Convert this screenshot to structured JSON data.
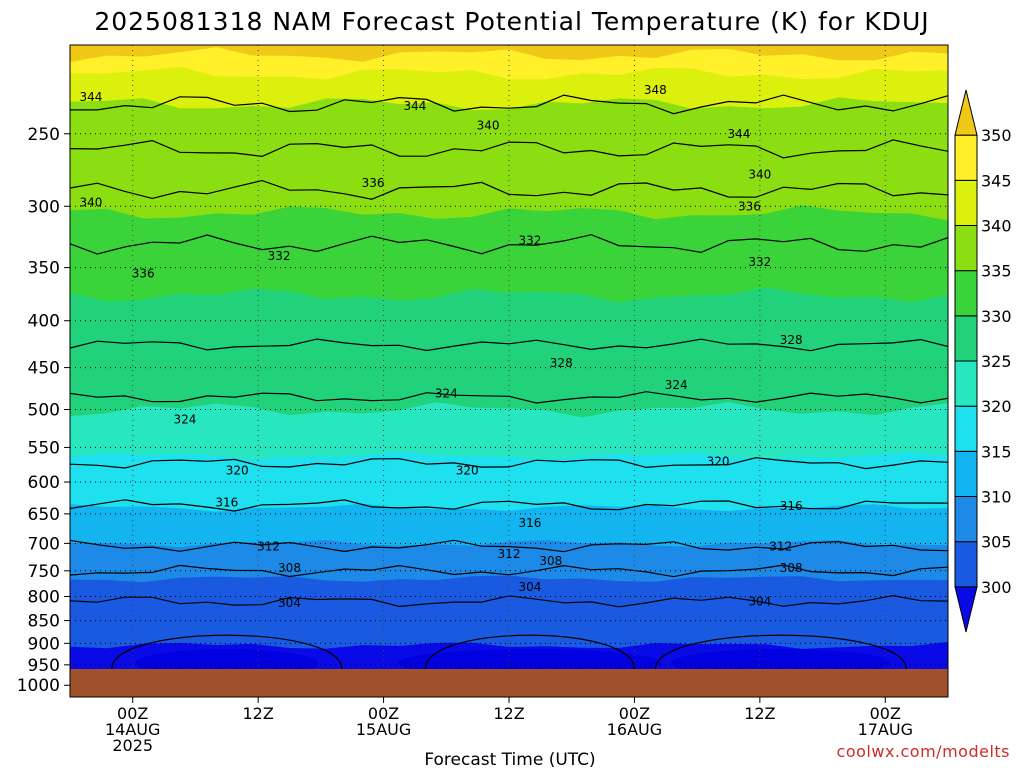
{
  "chart_data": {
    "type": "contour",
    "title": "2025081318 NAM Forecast Potential Temperature (K) for KDUJ",
    "xlabel": "Forecast Time (UTC)",
    "ylabel": "",
    "credit": "coolwx.com/modelts",
    "x_ticks": [
      {
        "hour": 6,
        "lines": [
          "00Z",
          "14AUG",
          "2025"
        ]
      },
      {
        "hour": 18,
        "lines": [
          "12Z"
        ]
      },
      {
        "hour": 30,
        "lines": [
          "00Z",
          "15AUG"
        ]
      },
      {
        "hour": 42,
        "lines": [
          "12Z"
        ]
      },
      {
        "hour": 54,
        "lines": [
          "00Z",
          "16AUG"
        ]
      },
      {
        "hour": 66,
        "lines": [
          "12Z"
        ]
      },
      {
        "hour": 78,
        "lines": [
          "00Z",
          "17AUG"
        ]
      }
    ],
    "x_range_hours": [
      0,
      84
    ],
    "y_ticks_hpa": [
      250,
      300,
      350,
      400,
      450,
      500,
      550,
      600,
      650,
      700,
      750,
      800,
      850,
      900,
      950,
      1000
    ],
    "y_range_hpa": [
      200,
      1030
    ],
    "y_scale": "log-pressure",
    "grid": "dotted",
    "ground_level_hpa": 960,
    "colorbar": {
      "levels": [
        300,
        305,
        310,
        315,
        320,
        325,
        330,
        335,
        340,
        345,
        350
      ],
      "colors": [
        "#0a0ae6",
        "#1a5ae0",
        "#1e8ae8",
        "#14b4f0",
        "#1ee0ee",
        "#28e6c0",
        "#22d27a",
        "#3ad43a",
        "#8ade12",
        "#dcf00e",
        "#fff02a",
        "#f0c818"
      ],
      "extend": "both",
      "placement": "right"
    },
    "ground_color": "#a0522d",
    "contour_lines": [
      {
        "value": 344,
        "pressure": 232
      },
      {
        "value": 340,
        "pressure": 260
      },
      {
        "value": 336,
        "pressure": 288
      },
      {
        "value": 332,
        "pressure": 330
      },
      {
        "value": 328,
        "pressure": 425
      },
      {
        "value": 324,
        "pressure": 485
      },
      {
        "value": 320,
        "pressure": 572
      },
      {
        "value": 316,
        "pressure": 636
      },
      {
        "value": 312,
        "pressure": 705
      },
      {
        "value": 308,
        "pressure": 750
      },
      {
        "value": 304,
        "pressure": 810
      }
    ],
    "contour_labels": [
      {
        "text": "344",
        "hour": 2,
        "pressure": 228
      },
      {
        "text": "344",
        "hour": 33,
        "pressure": 233
      },
      {
        "text": "348",
        "hour": 56,
        "pressure": 224
      },
      {
        "text": "340",
        "hour": 40,
        "pressure": 245
      },
      {
        "text": "344",
        "hour": 64,
        "pressure": 250
      },
      {
        "text": "340",
        "hour": 66,
        "pressure": 277
      },
      {
        "text": "340",
        "hour": 2,
        "pressure": 297
      },
      {
        "text": "336",
        "hour": 29,
        "pressure": 283
      },
      {
        "text": "336",
        "hour": 65,
        "pressure": 300
      },
      {
        "text": "336",
        "hour": 7,
        "pressure": 355
      },
      {
        "text": "332",
        "hour": 20,
        "pressure": 340
      },
      {
        "text": "332",
        "hour": 44,
        "pressure": 327
      },
      {
        "text": "332",
        "hour": 66,
        "pressure": 345
      },
      {
        "text": "328",
        "hour": 47,
        "pressure": 445
      },
      {
        "text": "328",
        "hour": 69,
        "pressure": 420
      },
      {
        "text": "324",
        "hour": 36,
        "pressure": 480
      },
      {
        "text": "324",
        "hour": 58,
        "pressure": 470
      },
      {
        "text": "324",
        "hour": 11,
        "pressure": 513
      },
      {
        "text": "320",
        "hour": 16,
        "pressure": 583
      },
      {
        "text": "320",
        "hour": 38,
        "pressure": 583
      },
      {
        "text": "320",
        "hour": 62,
        "pressure": 570
      },
      {
        "text": "316",
        "hour": 15,
        "pressure": 632
      },
      {
        "text": "316",
        "hour": 44,
        "pressure": 665
      },
      {
        "text": "316",
        "hour": 69,
        "pressure": 637
      },
      {
        "text": "312",
        "hour": 19,
        "pressure": 706
      },
      {
        "text": "312",
        "hour": 42,
        "pressure": 719
      },
      {
        "text": "308",
        "hour": 46,
        "pressure": 732
      },
      {
        "text": "312",
        "hour": 68,
        "pressure": 706
      },
      {
        "text": "308",
        "hour": 21,
        "pressure": 745
      },
      {
        "text": "308",
        "hour": 69,
        "pressure": 745
      },
      {
        "text": "304",
        "hour": 21,
        "pressure": 813
      },
      {
        "text": "304",
        "hour": 44,
        "pressure": 781
      },
      {
        "text": "304",
        "hour": 66,
        "pressure": 810
      }
    ]
  }
}
